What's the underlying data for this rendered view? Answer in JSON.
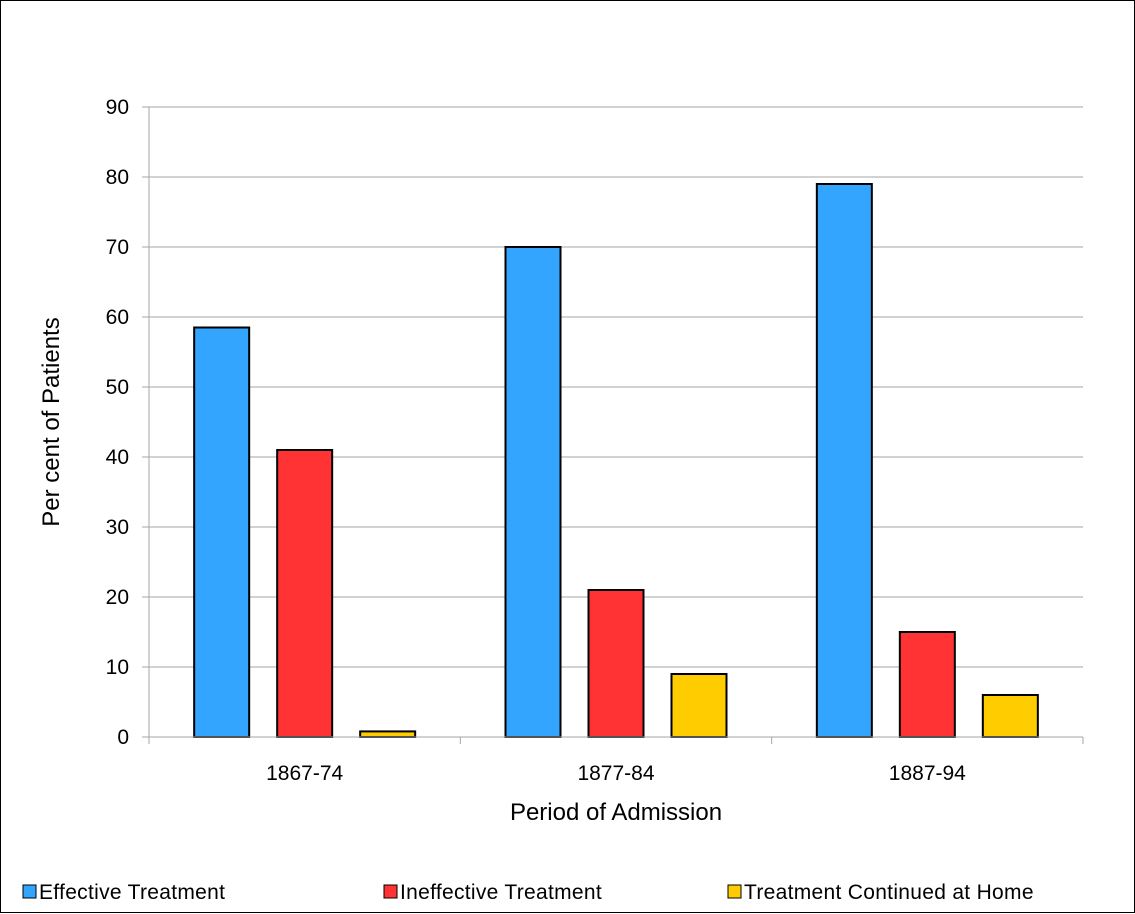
{
  "chart_data": {
    "type": "bar",
    "title": "",
    "xlabel": "Period of Admission",
    "ylabel": "Per cent of Patients",
    "categories": [
      "1867-74",
      "1877-84",
      "1887-94"
    ],
    "ylim": [
      0,
      90
    ],
    "yticks": [
      0,
      10,
      20,
      30,
      40,
      50,
      60,
      70,
      80,
      90
    ],
    "grid": "horizontal",
    "legend_position": "bottom",
    "series": [
      {
        "name": "Effective Treatment",
        "color": "#33a5ff",
        "values": [
          58.5,
          70,
          79
        ]
      },
      {
        "name": "Ineffective Treatment",
        "color": "#ff3333",
        "values": [
          41,
          21,
          15
        ]
      },
      {
        "name": "Treatment Continued at Home",
        "color": "#ffcc00",
        "values": [
          0.8,
          9,
          6
        ]
      }
    ]
  }
}
